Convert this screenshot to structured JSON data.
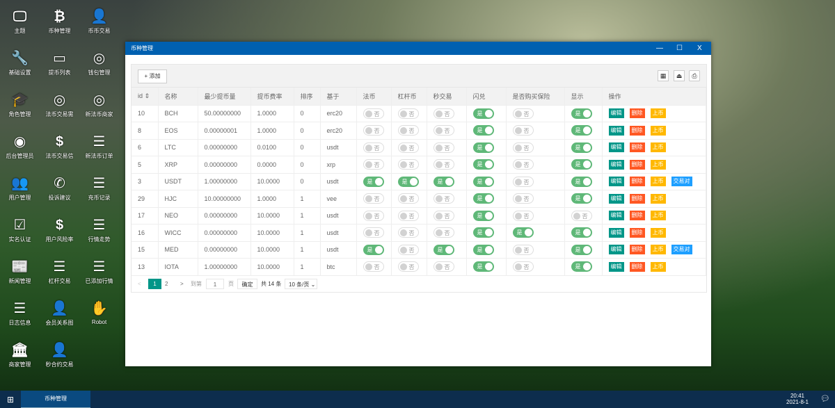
{
  "desktop": [
    {
      "label": "主题",
      "icon": "monitor-icon",
      "g": "🖵"
    },
    {
      "label": "币种管理",
      "icon": "bitcoin-icon",
      "g": "₿"
    },
    {
      "label": "币币交易",
      "icon": "user-plus-icon",
      "g": "👤"
    },
    {
      "label": "基础设置",
      "icon": "wrench-icon",
      "g": "🔧"
    },
    {
      "label": "提币列表",
      "icon": "credit-card-icon",
      "g": "▭"
    },
    {
      "label": "钱包管理",
      "icon": "link-circle-icon",
      "g": "◎"
    },
    {
      "label": "角色管理",
      "icon": "graduation-cap-icon",
      "g": "🎓"
    },
    {
      "label": "法币交易需",
      "icon": "link-circle-icon",
      "g": "◎"
    },
    {
      "label": "新法币商家",
      "icon": "link-circle-icon",
      "g": "◎"
    },
    {
      "label": "后台管理员",
      "icon": "user-circle-icon",
      "g": "◉"
    },
    {
      "label": "法币交易信",
      "icon": "dollar-icon",
      "g": "$"
    },
    {
      "label": "新法币订单",
      "icon": "list-icon",
      "g": "☰"
    },
    {
      "label": "用户管理",
      "icon": "users-icon",
      "g": "👥"
    },
    {
      "label": "投诉建议",
      "icon": "phone-icon",
      "g": "✆"
    },
    {
      "label": "充币记录",
      "icon": "list-icon",
      "g": "☰"
    },
    {
      "label": "实名认证",
      "icon": "check-square-icon",
      "g": "☑"
    },
    {
      "label": "用户风险率",
      "icon": "dollar-icon",
      "g": "$"
    },
    {
      "label": "行情走势",
      "icon": "list-icon",
      "g": "☰"
    },
    {
      "label": "新闻管理",
      "icon": "newspaper-icon",
      "g": "📰"
    },
    {
      "label": "杠杆交易",
      "icon": "list-icon",
      "g": "☰"
    },
    {
      "label": "已添加行情",
      "icon": "list-icon",
      "g": "☰"
    },
    {
      "label": "日志信息",
      "icon": "list-icon",
      "g": "☰"
    },
    {
      "label": "会员关系图",
      "icon": "user-plus-icon",
      "g": "👤"
    },
    {
      "label": "Robot",
      "icon": "hand-icon",
      "g": "✋"
    },
    {
      "label": "商家管理",
      "icon": "bank-icon",
      "g": "🏛"
    },
    {
      "label": "秒合约交易",
      "icon": "user-plus-icon",
      "g": "👤"
    }
  ],
  "window": {
    "title": "币种管理",
    "minimize": "—",
    "maximize": "☐",
    "close": "X"
  },
  "toolbar": {
    "add_label": "+ 添加",
    "icons": [
      "columns-icon",
      "export-icon",
      "print-icon"
    ]
  },
  "table": {
    "headers": [
      "id ⇕",
      "名称",
      "最少提币量",
      "提币费率",
      "排序",
      "基于",
      "法币",
      "杠杆币",
      "秒交易",
      "闪兑",
      "是否购买保险",
      "显示",
      "操作"
    ],
    "on_label": "是",
    "off_label": "否",
    "actions": {
      "edit": "编辑",
      "delete": "删除",
      "list": "上币",
      "pair": "交易对"
    },
    "rows": [
      {
        "id": "10",
        "name": "BCH",
        "min": "50.00000000",
        "fee": "1.0000",
        "sort": "0",
        "base": "erc20",
        "t": [
          0,
          0,
          0,
          1,
          0,
          1
        ],
        "pair": false
      },
      {
        "id": "8",
        "name": "EOS",
        "min": "0.00000001",
        "fee": "1.0000",
        "sort": "0",
        "base": "erc20",
        "t": [
          0,
          0,
          0,
          1,
          0,
          1
        ],
        "pair": false
      },
      {
        "id": "6",
        "name": "LTC",
        "min": "0.00000000",
        "fee": "0.0100",
        "sort": "0",
        "base": "usdt",
        "t": [
          0,
          0,
          0,
          1,
          0,
          1
        ],
        "pair": false
      },
      {
        "id": "5",
        "name": "XRP",
        "min": "0.00000000",
        "fee": "0.0000",
        "sort": "0",
        "base": "xrp",
        "t": [
          0,
          0,
          0,
          1,
          0,
          1
        ],
        "pair": false
      },
      {
        "id": "3",
        "name": "USDT",
        "min": "1.00000000",
        "fee": "10.0000",
        "sort": "0",
        "base": "usdt",
        "t": [
          1,
          1,
          1,
          1,
          0,
          1
        ],
        "pair": true
      },
      {
        "id": "29",
        "name": "HJC",
        "min": "10.00000000",
        "fee": "1.0000",
        "sort": "1",
        "base": "vee",
        "t": [
          0,
          0,
          0,
          1,
          0,
          1
        ],
        "pair": false
      },
      {
        "id": "17",
        "name": "NEO",
        "min": "0.00000000",
        "fee": "10.0000",
        "sort": "1",
        "base": "usdt",
        "t": [
          0,
          0,
          0,
          1,
          0,
          0
        ],
        "pair": false
      },
      {
        "id": "16",
        "name": "WICC",
        "min": "0.00000000",
        "fee": "10.0000",
        "sort": "1",
        "base": "usdt",
        "t": [
          0,
          0,
          0,
          1,
          1,
          1
        ],
        "pair": false
      },
      {
        "id": "15",
        "name": "MED",
        "min": "0.00000000",
        "fee": "10.0000",
        "sort": "1",
        "base": "usdt",
        "t": [
          1,
          0,
          1,
          1,
          0,
          1
        ],
        "pair": true
      },
      {
        "id": "13",
        "name": "IOTA",
        "min": "1.00000000",
        "fee": "10.0000",
        "sort": "1",
        "base": "btc",
        "t": [
          0,
          0,
          0,
          1,
          0,
          1
        ],
        "pair": false
      }
    ]
  },
  "pagination": {
    "prev": "<",
    "pages": [
      "1",
      "2"
    ],
    "current": "1",
    "next": ">",
    "goto": "到第",
    "page_value": "1",
    "page_unit": "页",
    "confirm": "确定",
    "total": "共 14 条",
    "per_page": "10 条/页"
  },
  "taskbar": {
    "start": "windows-icon",
    "task": "币种管理",
    "time": "20:41",
    "date": "2021-8-1"
  },
  "colors": {
    "titlebar": "#0060b0",
    "on": "#5fb878",
    "edit": "#009688",
    "delete": "#ff5722",
    "list": "#ffb800",
    "pair": "#1e9fff"
  }
}
